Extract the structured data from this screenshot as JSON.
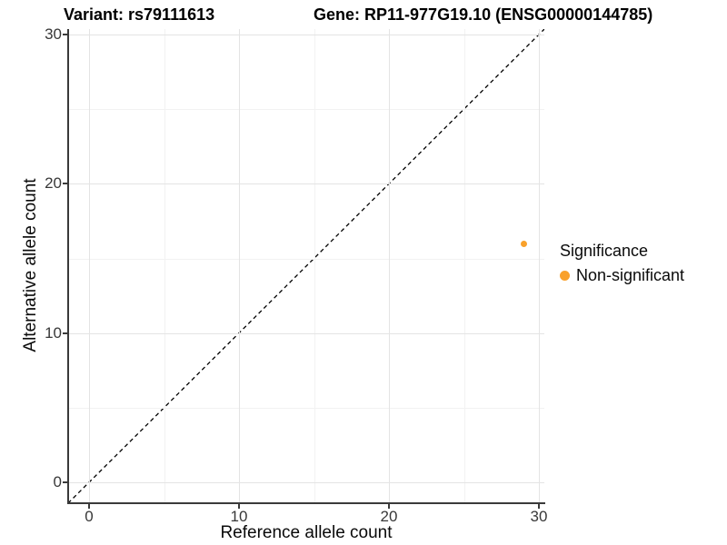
{
  "titles": {
    "variant": "Variant: rs79111613",
    "gene": "Gene: RP11-977G19.10 (ENSG00000144785)"
  },
  "axes": {
    "x": {
      "label": "Reference allele count"
    },
    "y": {
      "label": "Alternative allele count"
    }
  },
  "legend": {
    "title": "Significance",
    "items": [
      {
        "label": "Non-significant",
        "color": "#F9A12B"
      }
    ]
  },
  "colors": {
    "point": "#F9A12B",
    "axis": "#3a3a3a",
    "grid_major": "#e4e4e4",
    "grid_minor": "#f2f2f2",
    "dashed_line": "#000000"
  },
  "chart_data": {
    "type": "scatter",
    "title": "Variant: rs79111613  /  Gene: RP11-977G19.10 (ENSG00000144785)",
    "xlabel": "Reference allele count",
    "ylabel": "Alternative allele count",
    "xlim": [
      -1.4,
      30.4
    ],
    "ylim": [
      -1.4,
      30.4
    ],
    "x_ticks": [
      0,
      10,
      20,
      30
    ],
    "y_ticks": [
      0,
      10,
      20,
      30
    ],
    "x_minor_ticks": [
      5,
      15,
      25
    ],
    "y_minor_ticks": [
      5,
      15,
      25
    ],
    "grid": true,
    "legend_position": "right",
    "series": [
      {
        "name": "Non-significant",
        "color": "#F9A12B",
        "points": [
          {
            "x": 29,
            "y": 16
          }
        ]
      }
    ],
    "reference_line": {
      "type": "identity y=x",
      "style": "dashed",
      "color": "#000000",
      "from": [
        -1.4,
        -1.4
      ],
      "to": [
        30.4,
        30.4
      ]
    }
  }
}
